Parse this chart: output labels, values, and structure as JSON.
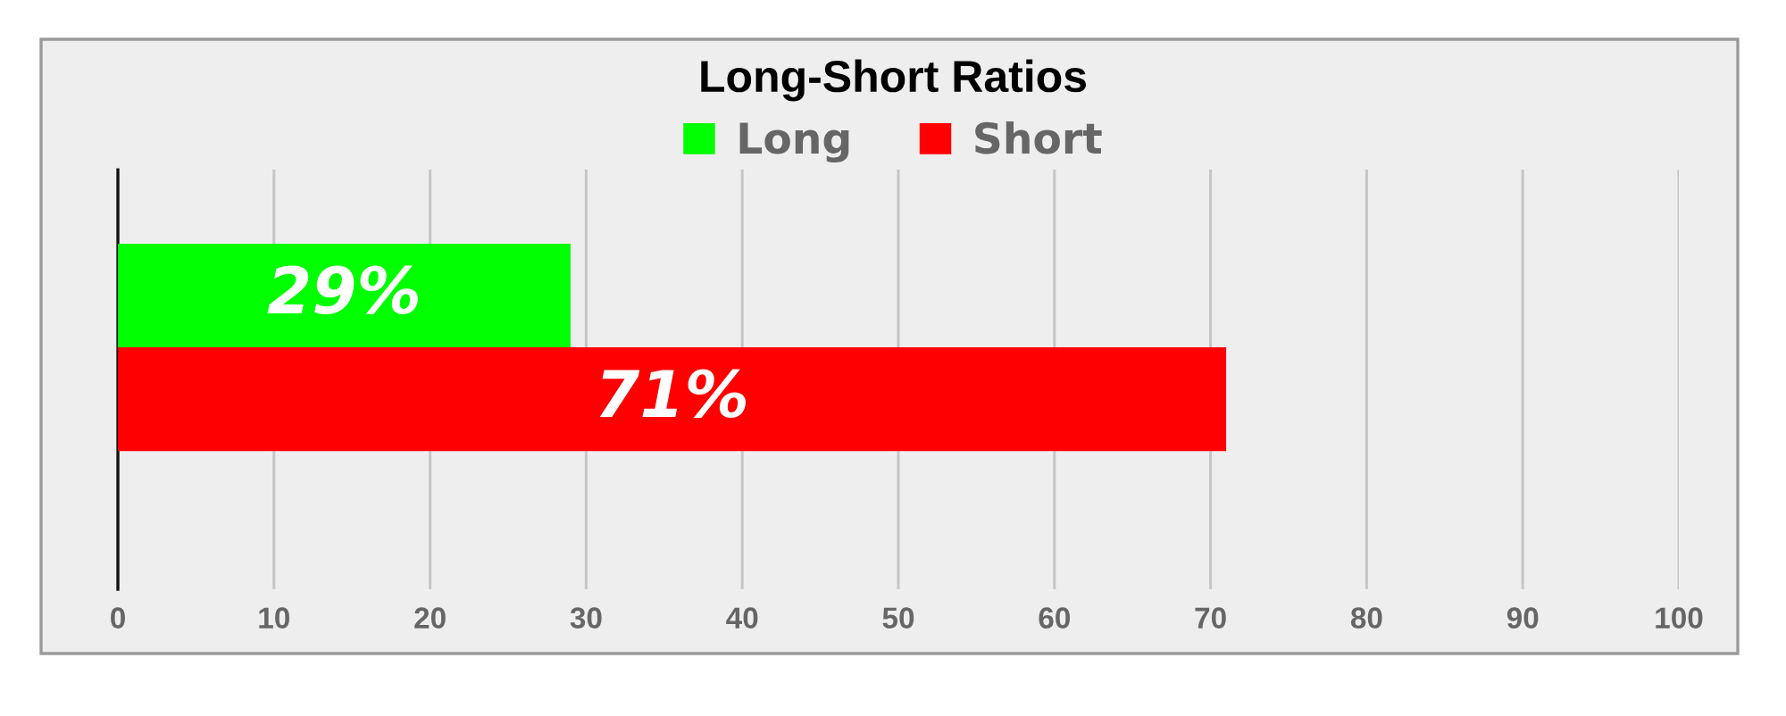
{
  "chart_data": {
    "type": "bar",
    "title": "Long-Short Ratios",
    "orientation": "horizontal",
    "categories": [
      null
    ],
    "series": [
      {
        "name": "Long",
        "color": "#00ff00",
        "values": [
          29
        ],
        "value_labels": [
          "29%"
        ]
      },
      {
        "name": "Short",
        "color": "#ff0000",
        "values": [
          71
        ],
        "value_labels": [
          "71%"
        ]
      }
    ],
    "xlim": [
      0,
      100
    ],
    "xticks": [
      0,
      10,
      20,
      30,
      40,
      50,
      60,
      70,
      80,
      90,
      100
    ],
    "grid": "x",
    "legend": "top",
    "tick_labels": "x"
  }
}
